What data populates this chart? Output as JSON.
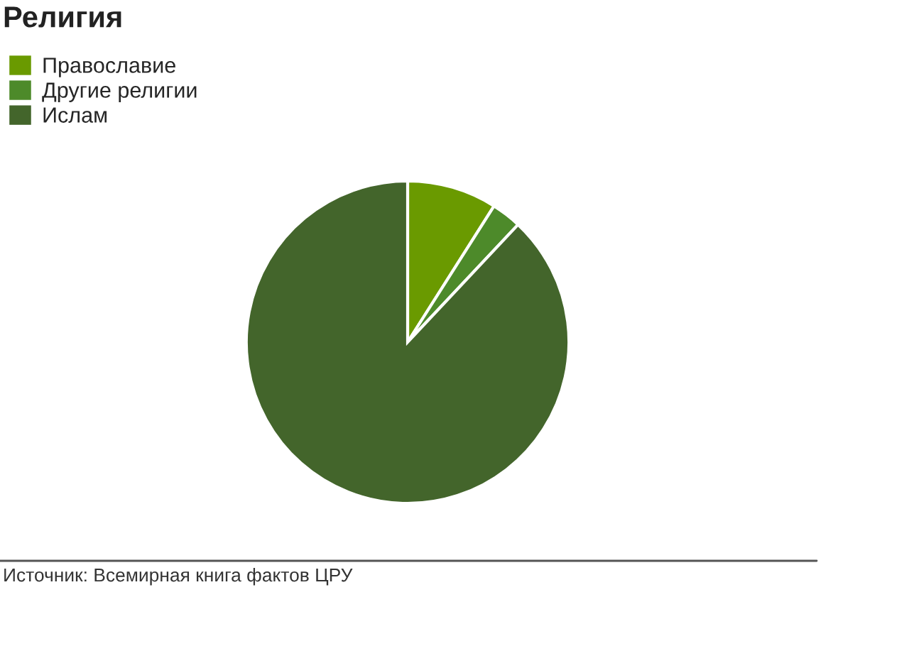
{
  "chart_data": {
    "type": "pie",
    "title": "Религия",
    "categories": [
      "Православие",
      "Другие религии",
      "Ислам"
    ],
    "values": [
      9,
      3,
      88
    ],
    "colors": [
      "#6a9a00",
      "#4d8a2a",
      "#43652b"
    ],
    "legend": "top left",
    "annotations": [
      "Источник: Всемирная книга фактов ЦРУ"
    ]
  }
}
